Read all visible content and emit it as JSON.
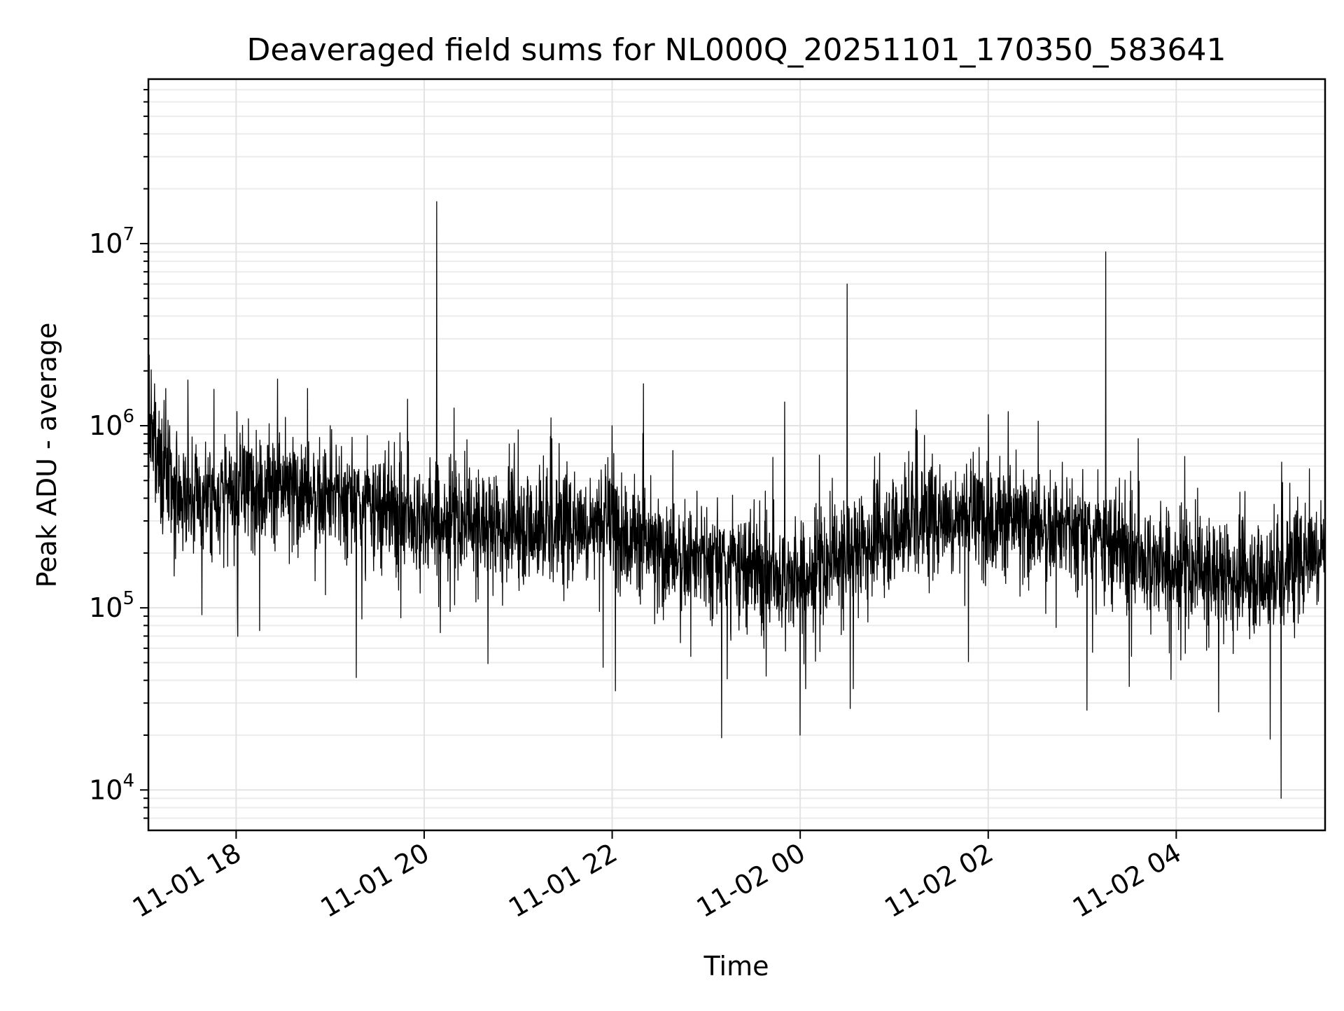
{
  "chart_data": {
    "type": "line",
    "title": "Deaveraged field sums for NL000Q_20251101_170350_583641",
    "xlabel": "Time",
    "ylabel": "Peak ADU - average",
    "xscale": "time",
    "yscale": "log",
    "xlim": [
      "2025-11-01 17:04",
      "2025-11-02 05:35"
    ],
    "ylim": [
      6000,
      80000000
    ],
    "grid": true,
    "legend": "none",
    "line_color": "#000000",
    "x_ticks": [
      {
        "label": "11-01 18",
        "value": "2025-11-01 18:00"
      },
      {
        "label": "11-01 20",
        "value": "2025-11-01 20:00"
      },
      {
        "label": "11-01 22",
        "value": "2025-11-01 22:00"
      },
      {
        "label": "11-02 00",
        "value": "2025-11-02 00:00"
      },
      {
        "label": "11-02 02",
        "value": "2025-11-02 02:00"
      },
      {
        "label": "11-02 04",
        "value": "2025-11-02 04:00"
      }
    ],
    "y_ticks": [
      {
        "base": "10",
        "exp": "4",
        "value": 10000
      },
      {
        "base": "10",
        "exp": "5",
        "value": 100000
      },
      {
        "base": "10",
        "exp": "6",
        "value": 1000000
      },
      {
        "base": "10",
        "exp": "7",
        "value": 10000000
      }
    ],
    "trend": [
      [
        "2025-11-01 17:04",
        900000
      ],
      [
        "2025-11-01 17:20",
        400000
      ],
      [
        "2025-11-01 17:45",
        400000
      ],
      [
        "2025-11-01 18:15",
        480000
      ],
      [
        "2025-11-01 19:00",
        400000
      ],
      [
        "2025-11-01 20:00",
        300000
      ],
      [
        "2025-11-01 21:00",
        280000
      ],
      [
        "2025-11-01 22:00",
        300000
      ],
      [
        "2025-11-01 22:30",
        200000
      ],
      [
        "2025-11-01 23:30",
        160000
      ],
      [
        "2025-11-02 00:00",
        140000
      ],
      [
        "2025-11-02 00:30",
        200000
      ],
      [
        "2025-11-02 01:15",
        320000
      ],
      [
        "2025-11-02 02:00",
        320000
      ],
      [
        "2025-11-02 03:00",
        250000
      ],
      [
        "2025-11-02 04:00",
        160000
      ],
      [
        "2025-11-02 05:00",
        150000
      ],
      [
        "2025-11-02 05:35",
        230000
      ]
    ],
    "spikes": [
      [
        "2025-11-01 17:08",
        1700000
      ],
      [
        "2025-11-01 17:15",
        1600000
      ],
      [
        "2025-11-01 18:15",
        75000
      ],
      [
        "2025-11-01 19:00",
        1000000
      ],
      [
        "2025-11-01 20:08",
        17000000
      ],
      [
        "2025-11-01 21:00",
        950000
      ],
      [
        "2025-11-01 22:00",
        1000000
      ],
      [
        "2025-11-01 22:02",
        35000
      ],
      [
        "2025-11-01 22:20",
        1700000
      ],
      [
        "2025-11-01 23:50",
        1350000
      ],
      [
        "2025-11-02 00:00",
        20000
      ],
      [
        "2025-11-02 00:30",
        6000000
      ],
      [
        "2025-11-02 00:32",
        28000
      ],
      [
        "2025-11-02 02:00",
        1150000
      ],
      [
        "2025-11-02 03:15",
        9000000
      ],
      [
        "2025-11-02 03:30",
        37000
      ],
      [
        "2025-11-02 05:00",
        19000
      ],
      [
        "2025-11-02 05:07",
        9000
      ],
      [
        "2025-11-02 05:25",
        580000
      ]
    ]
  }
}
